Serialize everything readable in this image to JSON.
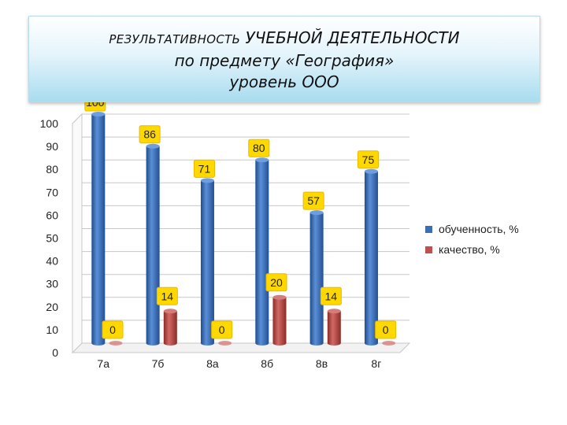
{
  "title": {
    "line1_part1": "РЕЗУЛЬТАТИВНОСТЬ",
    "line1_part2": "УЧЕБНОЙ ДЕЯТЕЛЬНОСТИ",
    "line2": "по предмету «География»",
    "line3": "уровень ООО"
  },
  "colors": {
    "series1": "#3a6fb8",
    "series2": "#c0504d",
    "label_bg": "#ffd800",
    "label_border": "#e8b800"
  },
  "chart_data": {
    "type": "bar",
    "categories": [
      "7а",
      "7б",
      "8а",
      "8б",
      "8в",
      "8г"
    ],
    "series": [
      {
        "name": "обученность, %",
        "values": [
          100,
          86,
          71,
          80,
          57,
          75
        ]
      },
      {
        "name": "качество, %",
        "values": [
          0,
          14,
          0,
          20,
          14,
          0
        ]
      }
    ],
    "ylim": [
      0,
      100
    ],
    "yticks": [
      0,
      10,
      20,
      30,
      40,
      50,
      60,
      70,
      80,
      90,
      100
    ],
    "legend": "right",
    "grid": true
  }
}
